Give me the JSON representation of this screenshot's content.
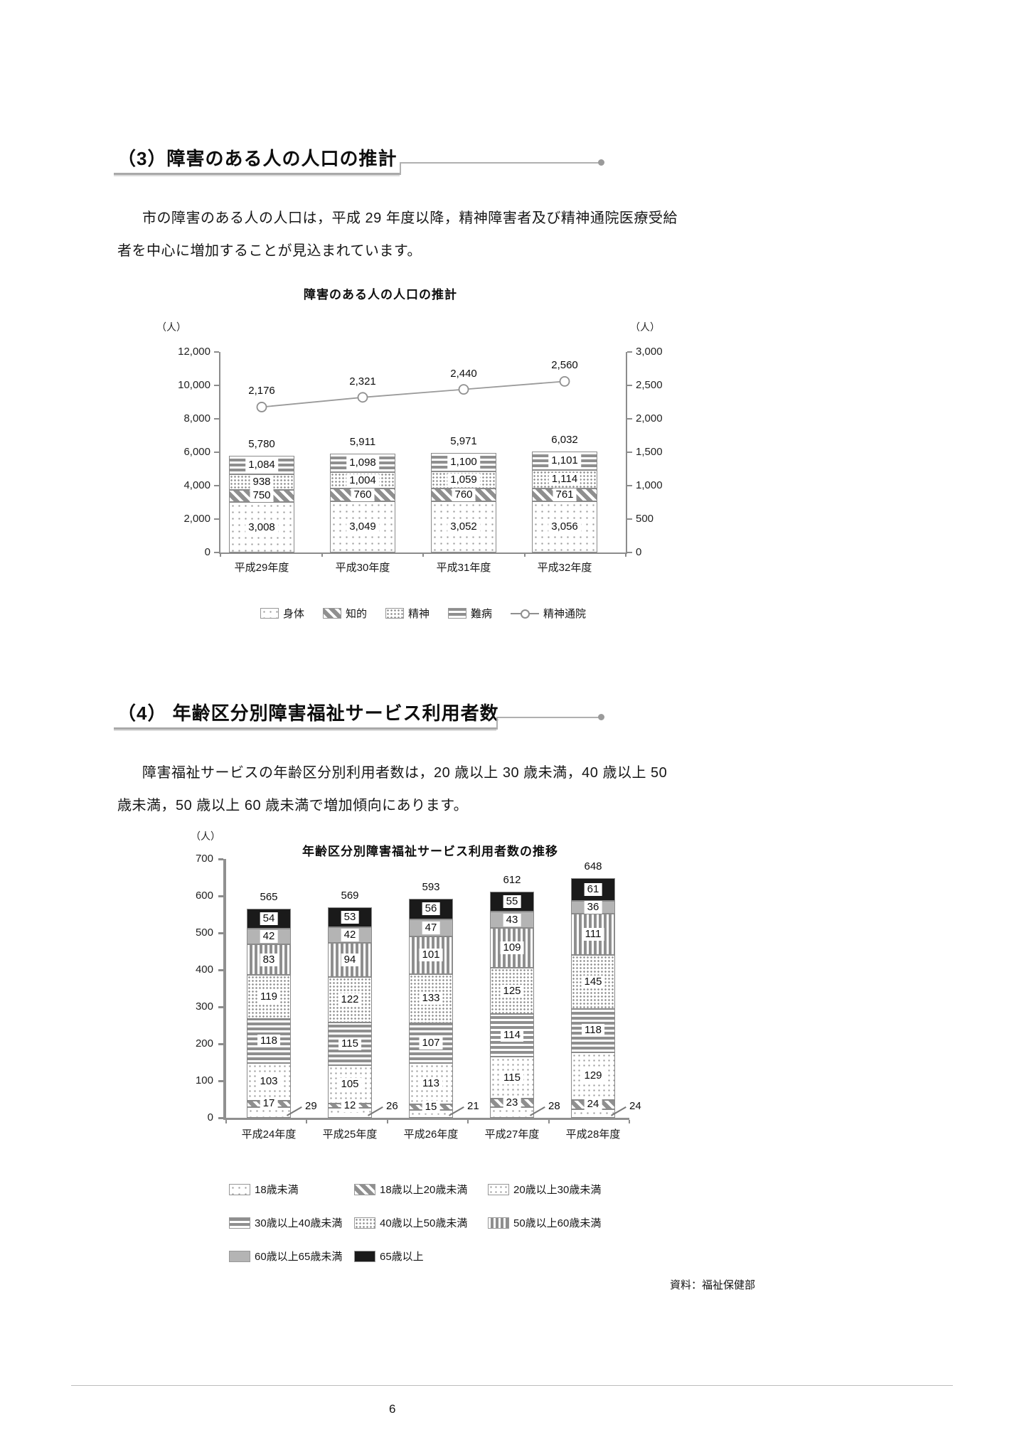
{
  "page": {
    "number": "6"
  },
  "colors": {
    "axis": "#8c8c8c",
    "bar_border": "#8a8a8a",
    "solid_gray": "#b4b4b4",
    "solid_black": "#1a1a1a",
    "text": "#111111"
  },
  "section3": {
    "heading": "（3）障害のある人の人口の推計",
    "body_line1": "市の障害のある人の人口は，平成 29 年度以降，精神障害者及び精神通院医療受給",
    "body_line2": "者を中心に増加することが見込まれています。"
  },
  "section4": {
    "heading": "（4） 年齢区分別障害福祉サービス利用者数",
    "body_line1": "障害福祉サービスの年齢区分別利用者数は，20 歳以上 30 歳未満，40 歳以上 50",
    "body_line2": "歳未満，50 歳以上 60 歳未満で増加傾向にあります。"
  },
  "source_note": "資料：福祉保健部",
  "chart_data": [
    {
      "type": "bar",
      "subtype": "stacked-bar-with-line",
      "title": "障害のある人の人口の推計",
      "unit_left": "（人）",
      "unit_right": "（人）",
      "categories": [
        "平成29年度",
        "平成30年度",
        "平成31年度",
        "平成32年度"
      ],
      "series": [
        {
          "name": "身体",
          "pattern": "dots-sparse",
          "values": [
            3008,
            3049,
            3052,
            3056
          ]
        },
        {
          "name": "知的",
          "pattern": "diagonal",
          "values": [
            750,
            760,
            760,
            761
          ]
        },
        {
          "name": "精神",
          "pattern": "dots-dense",
          "values": [
            938,
            1004,
            1059,
            1114
          ]
        },
        {
          "name": "難病",
          "pattern": "hstripes",
          "values": [
            1084,
            1098,
            1100,
            1101
          ]
        }
      ],
      "totals": [
        5780,
        5911,
        5971,
        6032
      ],
      "line_series": {
        "name": "精神通院",
        "values": [
          2176,
          2321,
          2440,
          2560
        ],
        "axis": "right",
        "marker": "open-circle"
      },
      "left_axis": {
        "ticks": [
          "12,000",
          "10,000",
          "8,000",
          "6,000",
          "4,000",
          "2,000",
          "0"
        ],
        "min": 0,
        "max": 12000
      },
      "right_axis": {
        "ticks": [
          "3,000",
          "2,500",
          "2,000",
          "1,500",
          "1,000",
          "500",
          "0"
        ],
        "min": 0,
        "max": 3000
      },
      "grid": false,
      "legend_position": "bottom"
    },
    {
      "type": "bar",
      "subtype": "stacked-bar",
      "title": "年齢区分別障害福祉サービス利用者数の推移",
      "unit": "（人）",
      "categories": [
        "平成24年度",
        "平成25年度",
        "平成26年度",
        "平成27年度",
        "平成28年度"
      ],
      "series": [
        {
          "name": "18歳未満",
          "pattern": "dots-sparse",
          "values": [
            29,
            26,
            21,
            28,
            24
          ],
          "label_outside": true
        },
        {
          "name": "18歳以上20歳未満",
          "pattern": "diagonal",
          "values": [
            17,
            12,
            15,
            23,
            24
          ]
        },
        {
          "name": "20歳以上30歳未満",
          "pattern": "dots-medium",
          "values": [
            103,
            105,
            113,
            115,
            129
          ]
        },
        {
          "name": "30歳以上40歳未満",
          "pattern": "hstripes",
          "values": [
            118,
            115,
            107,
            114,
            118
          ]
        },
        {
          "name": "40歳以上50歳未満",
          "pattern": "dots-dense",
          "values": [
            119,
            122,
            133,
            125,
            145
          ]
        },
        {
          "name": "50歳以上60歳未満",
          "pattern": "vstripes",
          "values": [
            83,
            94,
            101,
            109,
            111
          ]
        },
        {
          "name": "60歳以上65歳未満",
          "pattern": "solid-gray",
          "values": [
            42,
            42,
            47,
            43,
            36
          ]
        },
        {
          "name": "65歳以上",
          "pattern": "solid-black",
          "values": [
            54,
            53,
            56,
            55,
            61
          ]
        }
      ],
      "totals": [
        565,
        569,
        593,
        612,
        648
      ],
      "left_axis": {
        "ticks": [
          "700",
          "600",
          "500",
          "400",
          "300",
          "200",
          "100",
          "0"
        ],
        "min": 0,
        "max": 700
      },
      "grid": false,
      "legend_position": "bottom"
    }
  ]
}
